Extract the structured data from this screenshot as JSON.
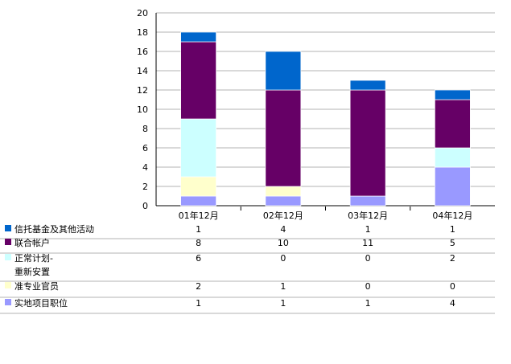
{
  "chart_data": {
    "type": "bar",
    "stacked": true,
    "categories": [
      "01年12月",
      "02年12月",
      "03年12月",
      "04年12月"
    ],
    "ylim": [
      0,
      20
    ],
    "yticks": [
      0,
      2,
      4,
      6,
      8,
      10,
      12,
      14,
      16,
      18,
      20
    ],
    "grid": true,
    "legend": "data-table-below",
    "series": [
      {
        "name": "信托基金及其他活动",
        "lines": [
          "信托基金及其他活动"
        ],
        "color": "#0066cc",
        "values": [
          1,
          4,
          1,
          1
        ]
      },
      {
        "name": "联合帐户",
        "lines": [
          "联合帐户"
        ],
        "color": "#660066",
        "values": [
          8,
          10,
          11,
          5
        ]
      },
      {
        "name": "正常计划-重新安置",
        "lines": [
          "正常计划-",
          "重新安置"
        ],
        "color": "#ccffff",
        "values": [
          6,
          0,
          0,
          2
        ]
      },
      {
        "name": "准专业官员",
        "lines": [
          "准专业官员"
        ],
        "color": "#ffffcc",
        "values": [
          2,
          1,
          0,
          0
        ]
      },
      {
        "name": "实地项目职位",
        "lines": [
          "实地项目职位"
        ],
        "color": "#9999ff",
        "values": [
          1,
          1,
          1,
          4
        ]
      }
    ]
  }
}
